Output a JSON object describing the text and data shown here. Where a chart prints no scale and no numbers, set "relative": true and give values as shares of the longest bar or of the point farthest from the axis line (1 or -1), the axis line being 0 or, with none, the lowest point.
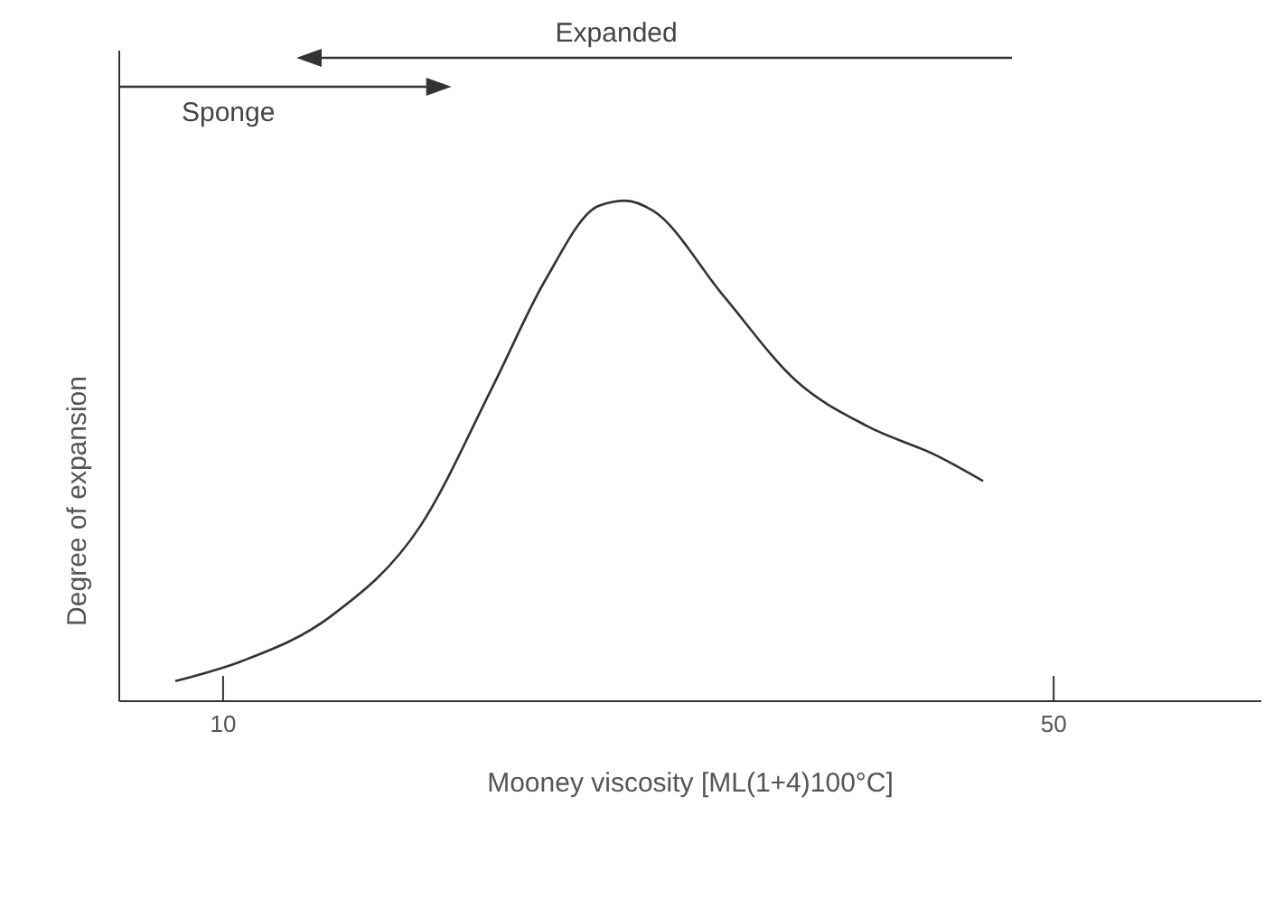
{
  "chart_data": {
    "type": "line",
    "xlabel": "Mooney viscosity  [ML(1+4)100°C]",
    "ylabel": "Degree of expansion",
    "relative": true,
    "xlim": [
      5,
      60
    ],
    "xticks": [
      10,
      50
    ],
    "marker": "none",
    "line_style": "solid",
    "x": [
      7.7,
      10.9,
      15.2,
      19.5,
      23.0,
      25.5,
      28.1,
      29.4,
      30.7,
      34.1,
      37.6,
      41.0,
      44.4,
      46.6
    ],
    "series": [
      {
        "color": "#333333",
        "values": [
          0.04,
          0.08,
          0.17,
          0.35,
          0.63,
          0.84,
          0.99,
          1,
          0.98,
          0.81,
          0.64,
          0.55,
          0.49,
          0.44
        ]
      }
    ],
    "annotations": [
      "Expanded",
      "Sponge"
    ]
  }
}
